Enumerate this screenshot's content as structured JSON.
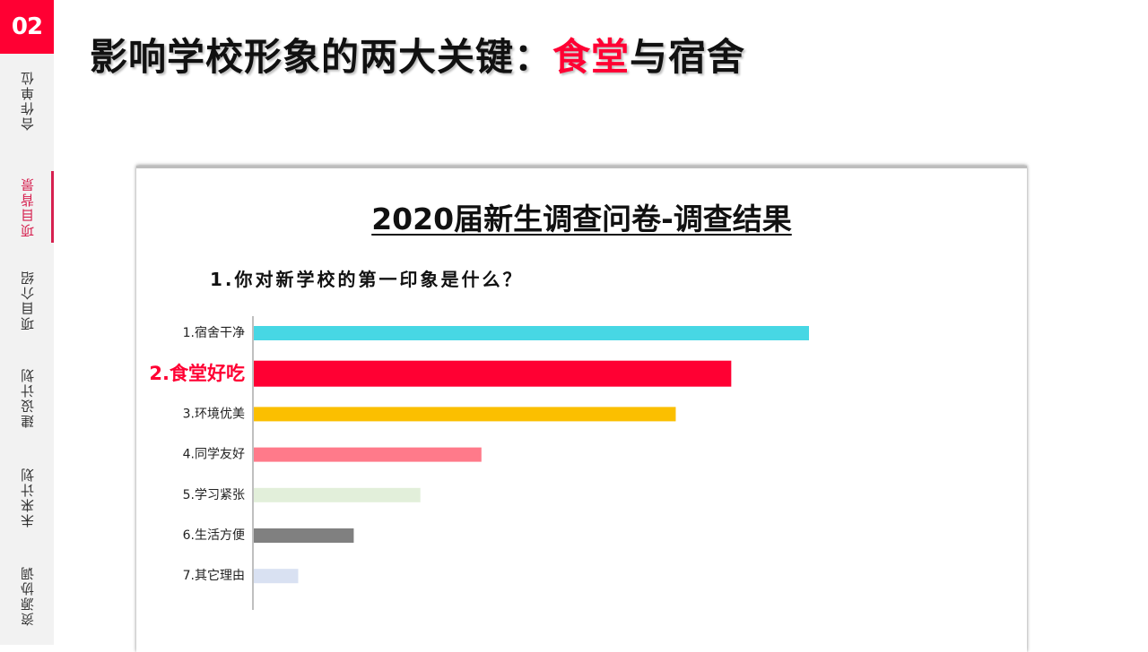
{
  "badge": "02",
  "sidebar": {
    "items": [
      {
        "label": "合作单位",
        "active": false
      },
      {
        "label": "项目背景",
        "active": true
      },
      {
        "label": "项目介绍",
        "active": false
      },
      {
        "label": "建设计划",
        "active": false
      },
      {
        "label": "未来计划",
        "active": false
      },
      {
        "label": "资源协调",
        "active": false
      }
    ]
  },
  "title": {
    "prefix": "影响学校形象的两大关键：",
    "accent": "食堂",
    "suffix": "与宿舍"
  },
  "card": {
    "title": "2020届新生调查问卷-调查结果",
    "question": "1.你对新学校的第一印象是什么？"
  },
  "colors": {
    "accent": "#ff0033",
    "sidebar_active": "#d6204f"
  },
  "chart_data": {
    "type": "bar",
    "orientation": "horizontal",
    "categories": [
      "1.宿舍干净",
      "2.食堂好吃",
      "3.环境优美",
      "4.同学友好",
      "5.学习紧张",
      "6.生活方便",
      "7.其它理由"
    ],
    "values": [
      100,
      86,
      76,
      41,
      30,
      18,
      8
    ],
    "colors": [
      "#47d7e4",
      "#ff0033",
      "#fbbf00",
      "#ff7a8a",
      "#e2efda",
      "#808080",
      "#d9e1f2"
    ],
    "highlight_index": 1,
    "xlim": [
      0,
      100
    ],
    "grid": false,
    "axis_labels_shown": false
  }
}
